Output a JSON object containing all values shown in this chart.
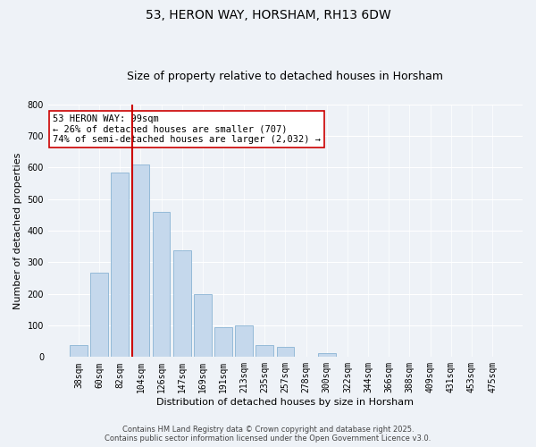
{
  "title": "53, HERON WAY, HORSHAM, RH13 6DW",
  "subtitle": "Size of property relative to detached houses in Horsham",
  "xlabel": "Distribution of detached houses by size in Horsham",
  "ylabel": "Number of detached properties",
  "categories": [
    "38sqm",
    "60sqm",
    "82sqm",
    "104sqm",
    "126sqm",
    "147sqm",
    "169sqm",
    "191sqm",
    "213sqm",
    "235sqm",
    "257sqm",
    "278sqm",
    "300sqm",
    "322sqm",
    "344sqm",
    "366sqm",
    "388sqm",
    "409sqm",
    "431sqm",
    "453sqm",
    "475sqm"
  ],
  "values": [
    37,
    267,
    585,
    610,
    460,
    338,
    200,
    93,
    100,
    37,
    32,
    0,
    13,
    0,
    0,
    0,
    0,
    0,
    0,
    0,
    0
  ],
  "bar_color": "#c5d8ec",
  "bar_edge_color": "#8ab4d4",
  "vline_color": "#cc0000",
  "ylim": [
    0,
    800
  ],
  "yticks": [
    0,
    100,
    200,
    300,
    400,
    500,
    600,
    700,
    800
  ],
  "annotation_title": "53 HERON WAY: 99sqm",
  "annotation_line1": "← 26% of detached houses are smaller (707)",
  "annotation_line2": "74% of semi-detached houses are larger (2,032) →",
  "annotation_box_color": "#ffffff",
  "annotation_box_edge": "#cc0000",
  "background_color": "#eef2f7",
  "grid_color": "#ffffff",
  "footer_line1": "Contains HM Land Registry data © Crown copyright and database right 2025.",
  "footer_line2": "Contains public sector information licensed under the Open Government Licence v3.0.",
  "title_fontsize": 10,
  "subtitle_fontsize": 9,
  "axis_label_fontsize": 8,
  "tick_fontsize": 7,
  "annotation_fontsize": 7.5,
  "footer_fontsize": 6
}
